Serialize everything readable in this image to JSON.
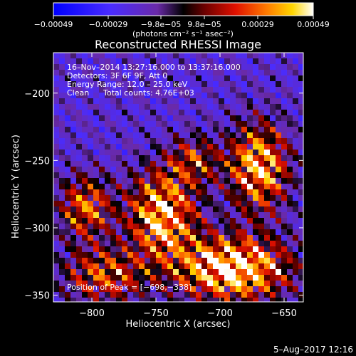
{
  "chart_data": {
    "type": "heatmap",
    "title": "Reconstructed RHESSI Image",
    "xlabel": "Heliocentric X (arcsec)",
    "ylabel": "Heliocentric Y (arcsec)",
    "xlim": [
      -830,
      -635
    ],
    "ylim": [
      -355,
      -170
    ],
    "x_ticks": [
      -800,
      -750,
      -700,
      -650
    ],
    "y_ticks": [
      -200,
      -250,
      -300,
      -350
    ],
    "x_tick_labels": [
      "−800",
      "−750",
      "−700",
      "−650"
    ],
    "y_tick_labels": [
      "−200",
      "−250",
      "−300",
      "−350"
    ],
    "colorbar": {
      "tick_labels": [
        "−0.00049",
        "−0.00029",
        "−9.8e−05",
        "9.8e−05",
        "0.00029",
        "0.00049"
      ],
      "unit_label": "(photons cm⁻² s⁻¹ asec⁻²)",
      "range": [
        -0.00049,
        0.00049
      ]
    },
    "annotations": {
      "time": "16–Nov–2014 13:27:16.000 to 13:37:16.000",
      "detectors": "Detectors: 3F 6F 9F, Att 0",
      "energy": "Energy Range: 12.0 – 25.0 keV",
      "method": "Clean",
      "counts": "Total counts: 4.76E+03",
      "peak": "Position of Peak = [−698,−338]"
    },
    "peak_position": [
      -698,
      -338
    ],
    "footer_date": "5–Aug–2017 12:16",
    "bright_regions": [
      {
        "x": -745,
        "y": -290,
        "level": 0.85,
        "sx": 18,
        "sy": 22
      },
      {
        "x": -690,
        "y": -330,
        "level": 1.0,
        "sx": 30,
        "sy": 16
      },
      {
        "x": -670,
        "y": -255,
        "level": 0.8,
        "sx": 16,
        "sy": 22
      },
      {
        "x": -805,
        "y": -285,
        "level": 0.6,
        "sx": 14,
        "sy": 16
      },
      {
        "x": -790,
        "y": -335,
        "level": 0.55,
        "sx": 22,
        "sy": 14
      },
      {
        "x": -720,
        "y": -250,
        "level": 0.45,
        "sx": 14,
        "sy": 12
      }
    ]
  }
}
